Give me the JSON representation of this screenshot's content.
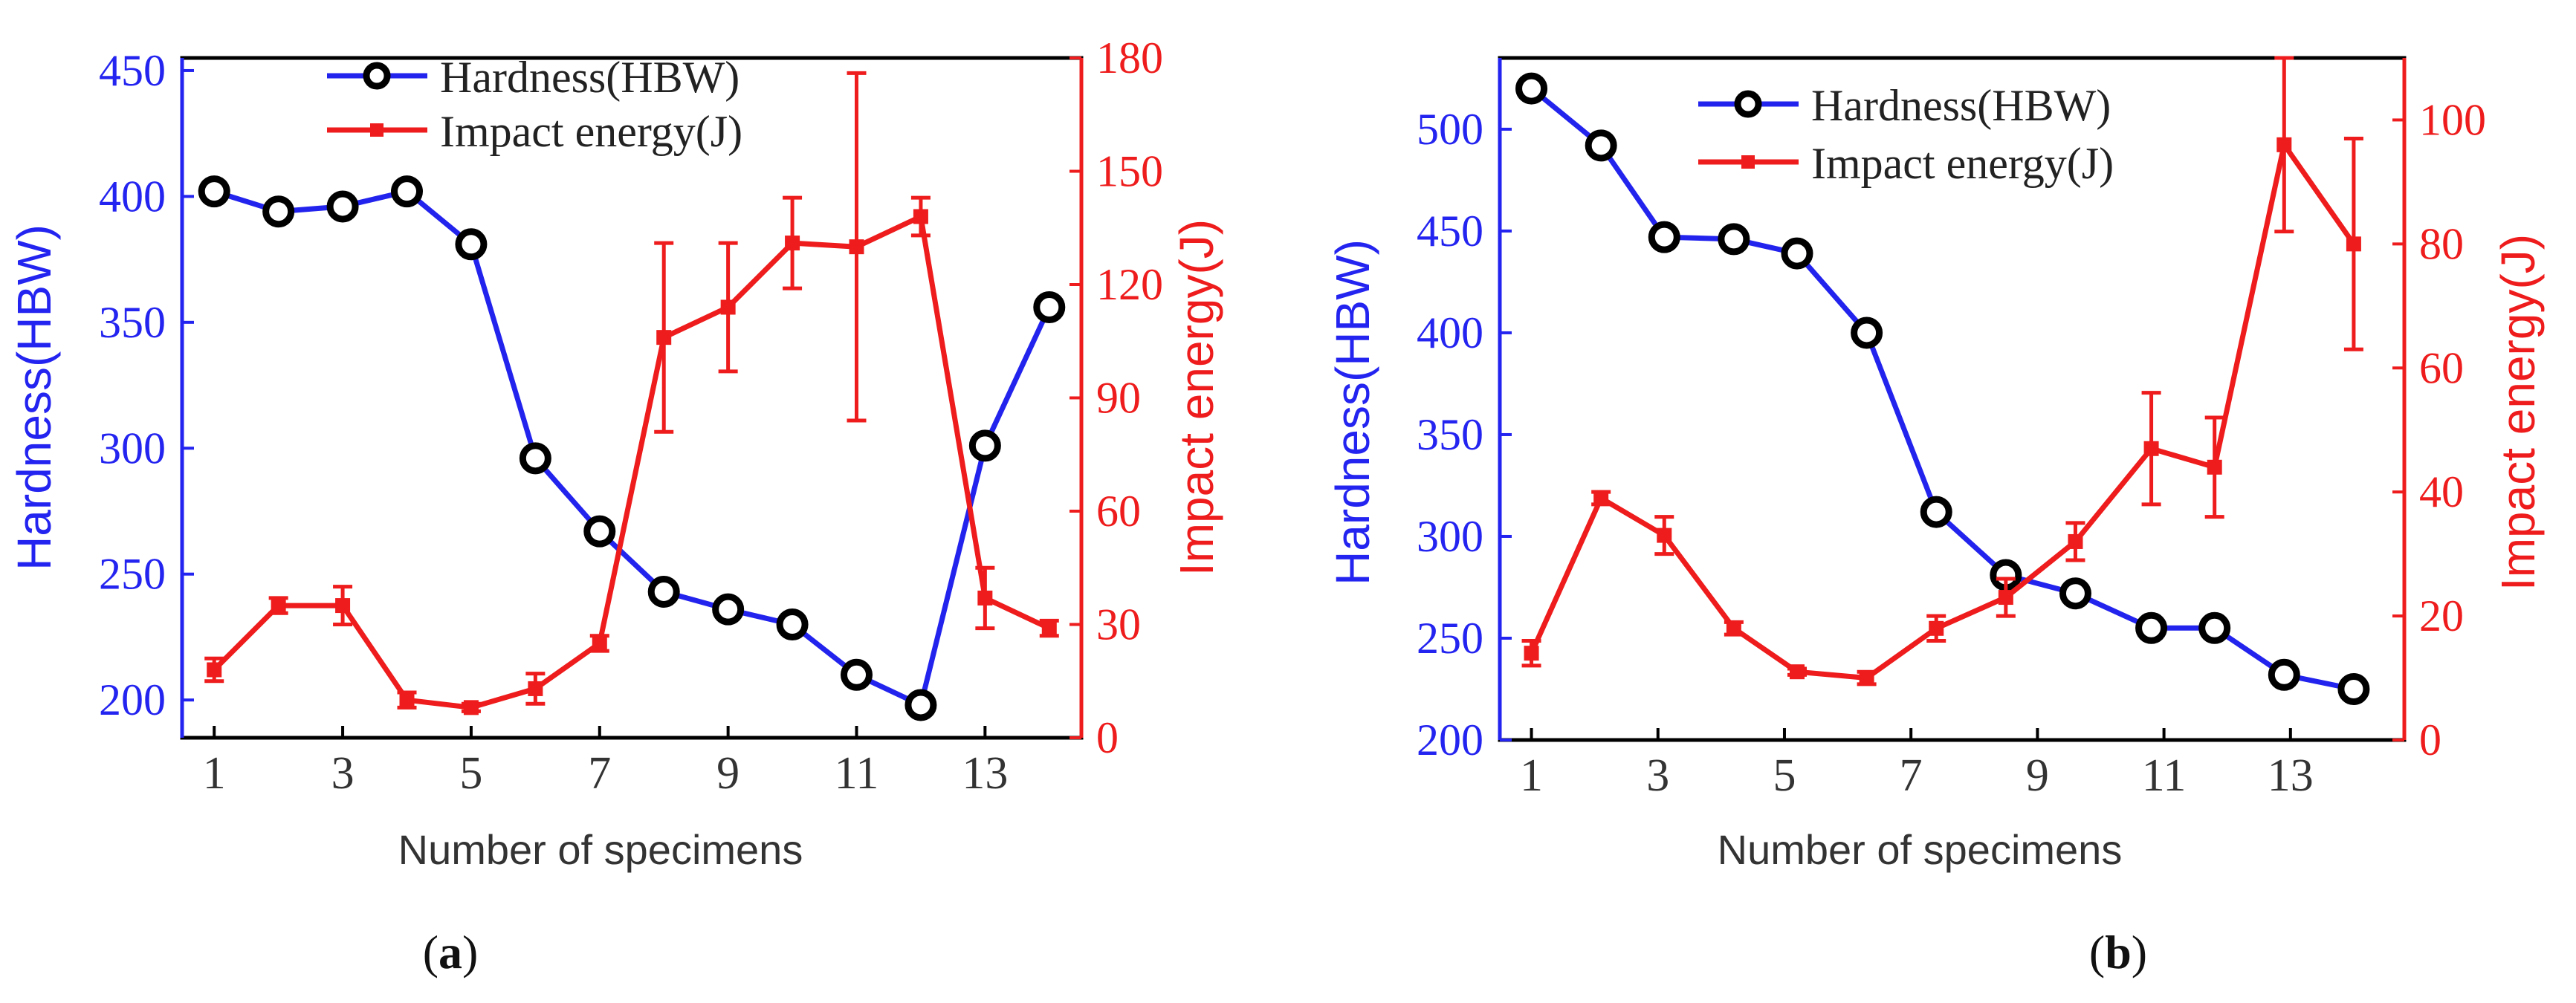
{
  "chart_data": [
    {
      "type": "line",
      "panel_label": "a",
      "xlabel": "Number of specimens",
      "ylabel_left": "Hardness(HBW)",
      "ylabel_right": "Impact energy(J)",
      "x_ticks": [
        "1",
        "3",
        "5",
        "7",
        "9",
        "11",
        "13"
      ],
      "x_range": [
        0.5,
        14.5
      ],
      "left_axis": {
        "range": [
          185,
          455
        ],
        "ticks": [
          200,
          250,
          300,
          350,
          400,
          450
        ]
      },
      "right_axis": {
        "range": [
          0,
          180
        ],
        "ticks": [
          0,
          30,
          60,
          90,
          120,
          150,
          180
        ]
      },
      "series": [
        {
          "name": "Hardness(HBW)",
          "axis": "left",
          "color": "#2323ee",
          "marker": "open-circle",
          "x": [
            1,
            2,
            3,
            4,
            5,
            6,
            7,
            8,
            9,
            10,
            11,
            12,
            13,
            14
          ],
          "values": [
            402,
            394,
            396,
            402,
            381,
            296,
            267,
            243,
            236,
            230,
            210,
            198,
            301,
            356
          ]
        },
        {
          "name": "Impact energy(J)",
          "axis": "right",
          "color": "#ee1c1c",
          "marker": "filled-square",
          "x": [
            1,
            2,
            3,
            4,
            5,
            6,
            7,
            8,
            9,
            10,
            11,
            12,
            13,
            14
          ],
          "values": [
            18,
            35,
            35,
            10,
            8,
            13,
            25,
            106,
            114,
            131,
            130,
            138,
            37,
            29
          ],
          "error": [
            3,
            2,
            5,
            2,
            1,
            4,
            2,
            25,
            17,
            12,
            46,
            5,
            8,
            2
          ]
        }
      ]
    },
    {
      "type": "line",
      "panel_label": "b",
      "xlabel": "Number of specimens",
      "ylabel_left": "Hardness(HBW)",
      "ylabel_right": "Impact energy(J)",
      "x_ticks": [
        "1",
        "3",
        "5",
        "7",
        "9",
        "11",
        "13"
      ],
      "x_range": [
        0.5,
        14.8
      ],
      "left_axis": {
        "range": [
          200,
          535
        ],
        "ticks": [
          200,
          250,
          300,
          350,
          400,
          450,
          500
        ]
      },
      "right_axis": {
        "range": [
          0,
          110
        ],
        "ticks": [
          0,
          20,
          40,
          60,
          80,
          100
        ]
      },
      "series": [
        {
          "name": "Hardness(HBW)",
          "axis": "left",
          "color": "#2323ee",
          "marker": "open-circle",
          "x": [
            1,
            2.1,
            3.1,
            4.2,
            5.2,
            6.3,
            7.4,
            8.5,
            9.6,
            10.8,
            11.8,
            12.9,
            14
          ],
          "values": [
            520,
            492,
            447,
            446,
            439,
            400,
            312,
            281,
            272,
            255,
            255,
            232,
            225
          ]
        },
        {
          "name": "Impact energy(J)",
          "axis": "right",
          "color": "#ee1c1c",
          "marker": "filled-square",
          "x": [
            1,
            2.1,
            3.1,
            4.2,
            5.2,
            6.3,
            7.4,
            8.5,
            9.6,
            10.8,
            11.8,
            12.9,
            14
          ],
          "values": [
            14,
            39,
            33,
            18,
            11,
            10,
            18,
            23,
            32,
            47,
            44,
            96,
            80
          ],
          "error": [
            2,
            1,
            3,
            1,
            0.5,
            1,
            2,
            3,
            3,
            9,
            8,
            14,
            17
          ]
        }
      ]
    }
  ]
}
